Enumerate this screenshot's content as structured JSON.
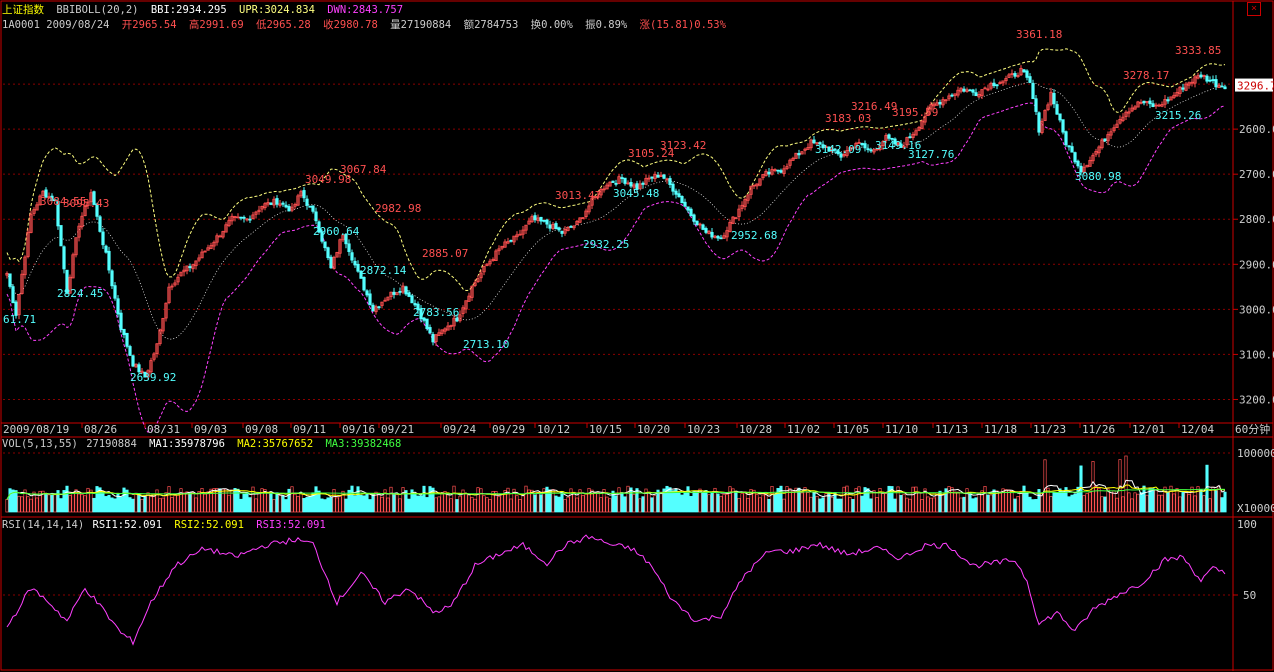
{
  "header": {
    "index_name": "上证指数",
    "bbi_label": "BBIBOLL(20,2)",
    "bbi": "BBI:2934.295",
    "upr": "UPR:3024.834",
    "dwn": "DWN:2843.757",
    "info_line": {
      "code_date": "1A0001 2009/08/24",
      "open": "开2965.54",
      "high": "高2991.69",
      "low": "低2965.28",
      "close": "收2980.78",
      "volume": "量27190884",
      "amount": "额2784753",
      "turnover": "换0.00%",
      "amplitude": "振0.89%",
      "change": "涨(15.81)0.53%"
    },
    "close_icon": "close-icon"
  },
  "colors": {
    "up": "#ff5050",
    "down": "#54ffff",
    "bbi": "#ffffff",
    "upr": "#ffff80",
    "dwn": "#ff40ff",
    "grid": "#8a0000",
    "axis": "#cc0000",
    "rsi": "#ff40ff",
    "ma1": "#ffffff",
    "ma2": "#ffff00",
    "ma3": "#40ff40"
  },
  "price_axis": {
    "ticks": [
      "3200.00",
      "3100.00",
      "3000.00",
      "2900.00",
      "2800.00",
      "2700.00",
      "2600.00"
    ],
    "current": "3296.7"
  },
  "time_axis": {
    "labels": [
      "2009/08/19",
      "08/26",
      "08/31",
      "09/03",
      "09/08",
      "09/11",
      "09/16",
      "09/21",
      "09/24",
      "09/29",
      "10/12",
      "10/15",
      "10/20",
      "10/23",
      "10/28",
      "11/02",
      "11/05",
      "11/10",
      "11/13",
      "11/18",
      "11/23",
      "11/26",
      "12/01",
      "12/04"
    ],
    "period": "60分钟"
  },
  "price_annotations": [
    {
      "text": "3084.55",
      "kind": "high"
    },
    {
      "text": "3095.43",
      "kind": "high"
    },
    {
      "text": "61.71",
      "kind": "low"
    },
    {
      "text": "2824.45",
      "kind": "low"
    },
    {
      "text": "2639.92",
      "kind": "low"
    },
    {
      "text": "3049.98",
      "kind": "high"
    },
    {
      "text": "3067.84",
      "kind": "high"
    },
    {
      "text": "2960.64",
      "kind": "low"
    },
    {
      "text": "2982.98",
      "kind": "high"
    },
    {
      "text": "2872.14",
      "kind": "low"
    },
    {
      "text": "2885.07",
      "kind": "high"
    },
    {
      "text": "2783.56",
      "kind": "low"
    },
    {
      "text": "2713.10",
      "kind": "low"
    },
    {
      "text": "3013.47",
      "kind": "high"
    },
    {
      "text": "2932.25",
      "kind": "low"
    },
    {
      "text": "3105.24",
      "kind": "high"
    },
    {
      "text": "3045.48",
      "kind": "low"
    },
    {
      "text": "3123.42",
      "kind": "high"
    },
    {
      "text": "2952.68",
      "kind": "low"
    },
    {
      "text": "3183.03",
      "kind": "high"
    },
    {
      "text": "3216.49",
      "kind": "high"
    },
    {
      "text": "3142.09",
      "kind": "low"
    },
    {
      "text": "3149.16",
      "kind": "low"
    },
    {
      "text": "3195.59",
      "kind": "high"
    },
    {
      "text": "3127.76",
      "kind": "low"
    },
    {
      "text": "3361.18",
      "kind": "high"
    },
    {
      "text": "3080.98",
      "kind": "low"
    },
    {
      "text": "3278.17",
      "kind": "high"
    },
    {
      "text": "3215.26",
      "kind": "low"
    },
    {
      "text": "3333.85",
      "kind": "high"
    }
  ],
  "volume_panel": {
    "label": "VOL(5,13,55)",
    "vol": "27190884",
    "ma1": "MA1:35978796",
    "ma2": "MA2:35767652",
    "ma3": "MA3:39382468",
    "axis_top": "100000",
    "axis_unit": "X10000"
  },
  "rsi_panel": {
    "label": "RSI(14,14,14)",
    "rsi1": "RSI1:52.091",
    "rsi2": "RSI2:52.091",
    "rsi3": "RSI3:52.091",
    "axis_top": "100",
    "axis_mid": "50"
  },
  "chart_data": [
    {
      "type": "candlestick",
      "title": "上证指数 BBIBOLL(20,2)",
      "ylim": [
        2550,
        3420
      ],
      "yticks": [
        2600,
        2700,
        2800,
        2900,
        3000,
        3100,
        3200
      ],
      "xtick_labels": [
        "2009/08/19",
        "08/26",
        "08/31",
        "09/03",
        "09/08",
        "09/11",
        "09/16",
        "09/21",
        "09/24",
        "09/29",
        "10/12",
        "10/15",
        "10/20",
        "10/23",
        "10/28",
        "11/02",
        "11/05",
        "11/10",
        "11/13",
        "11/18",
        "11/23",
        "11/26",
        "12/01",
        "12/04"
      ],
      "close_path": [
        [
          0,
          2880
        ],
        [
          3,
          2790
        ],
        [
          8,
          3010
        ],
        [
          12,
          3060
        ],
        [
          16,
          3040
        ],
        [
          20,
          2840
        ],
        [
          24,
          2990
        ],
        [
          28,
          3060
        ],
        [
          33,
          2920
        ],
        [
          38,
          2760
        ],
        [
          42,
          2680
        ],
        [
          46,
          2650
        ],
        [
          50,
          2720
        ],
        [
          54,
          2850
        ],
        [
          58,
          2880
        ],
        [
          62,
          2900
        ],
        [
          66,
          2930
        ],
        [
          70,
          2960
        ],
        [
          75,
          3000
        ],
        [
          80,
          3000
        ],
        [
          85,
          3030
        ],
        [
          90,
          3040
        ],
        [
          95,
          3020
        ],
        [
          98,
          3060
        ],
        [
          103,
          3000
        ],
        [
          108,
          2890
        ],
        [
          112,
          2970
        ],
        [
          117,
          2880
        ],
        [
          122,
          2800
        ],
        [
          127,
          2830
        ],
        [
          132,
          2850
        ],
        [
          137,
          2800
        ],
        [
          142,
          2730
        ],
        [
          146,
          2760
        ],
        [
          150,
          2780
        ],
        [
          155,
          2850
        ],
        [
          160,
          2900
        ],
        [
          165,
          2940
        ],
        [
          170,
          2960
        ],
        [
          175,
          3000
        ],
        [
          180,
          2990
        ],
        [
          185,
          2970
        ],
        [
          190,
          2990
        ],
        [
          195,
          3040
        ],
        [
          200,
          3080
        ],
        [
          205,
          3090
        ],
        [
          210,
          3070
        ],
        [
          214,
          3090
        ],
        [
          218,
          3100
        ],
        [
          223,
          3060
        ],
        [
          228,
          3010
        ],
        [
          233,
          2970
        ],
        [
          238,
          2960
        ],
        [
          243,
          3010
        ],
        [
          248,
          3070
        ],
        [
          253,
          3100
        ],
        [
          258,
          3110
        ],
        [
          263,
          3140
        ],
        [
          268,
          3170
        ],
        [
          273,
          3160
        ],
        [
          278,
          3140
        ],
        [
          283,
          3170
        ],
        [
          288,
          3150
        ],
        [
          293,
          3180
        ],
        [
          298,
          3160
        ],
        [
          303,
          3200
        ],
        [
          308,
          3250
        ],
        [
          313,
          3270
        ],
        [
          318,
          3290
        ],
        [
          323,
          3280
        ],
        [
          328,
          3300
        ],
        [
          333,
          3310
        ],
        [
          338,
          3330
        ],
        [
          341,
          3300
        ],
        [
          344,
          3200
        ],
        [
          348,
          3280
        ],
        [
          353,
          3170
        ],
        [
          358,
          3110
        ],
        [
          363,
          3150
        ],
        [
          368,
          3200
        ],
        [
          373,
          3240
        ],
        [
          378,
          3260
        ],
        [
          383,
          3250
        ],
        [
          388,
          3270
        ],
        [
          393,
          3300
        ],
        [
          398,
          3320
        ],
        [
          403,
          3300
        ],
        [
          406,
          3296.7
        ]
      ],
      "volume_scale": {
        "ylim": [
          0,
          100000
        ],
        "unit": "X10000"
      },
      "rsi_path": [
        [
          0,
          28
        ],
        [
          8,
          55
        ],
        [
          14,
          45
        ],
        [
          20,
          32
        ],
        [
          26,
          55
        ],
        [
          32,
          40
        ],
        [
          38,
          24
        ],
        [
          42,
          18
        ],
        [
          48,
          45
        ],
        [
          56,
          70
        ],
        [
          66,
          82
        ],
        [
          76,
          76
        ],
        [
          86,
          84
        ],
        [
          96,
          88
        ],
        [
          102,
          85
        ],
        [
          110,
          45
        ],
        [
          118,
          65
        ],
        [
          126,
          45
        ],
        [
          134,
          55
        ],
        [
          142,
          38
        ],
        [
          148,
          42
        ],
        [
          156,
          70
        ],
        [
          164,
          78
        ],
        [
          172,
          84
        ],
        [
          180,
          72
        ],
        [
          186,
          84
        ],
        [
          194,
          90
        ],
        [
          202,
          84
        ],
        [
          208,
          82
        ],
        [
          214,
          72
        ],
        [
          222,
          46
        ],
        [
          230,
          32
        ],
        [
          238,
          36
        ],
        [
          246,
          64
        ],
        [
          254,
          80
        ],
        [
          262,
          80
        ],
        [
          270,
          85
        ],
        [
          280,
          78
        ],
        [
          290,
          82
        ],
        [
          298,
          75
        ],
        [
          306,
          84
        ],
        [
          314,
          84
        ],
        [
          322,
          70
        ],
        [
          330,
          72
        ],
        [
          336,
          74
        ],
        [
          340,
          60
        ],
        [
          344,
          30
        ],
        [
          350,
          38
        ],
        [
          356,
          25
        ],
        [
          362,
          40
        ],
        [
          370,
          50
        ],
        [
          378,
          58
        ],
        [
          386,
          74
        ],
        [
          392,
          76
        ],
        [
          398,
          60
        ],
        [
          402,
          68
        ],
        [
          406,
          65
        ]
      ]
    }
  ]
}
